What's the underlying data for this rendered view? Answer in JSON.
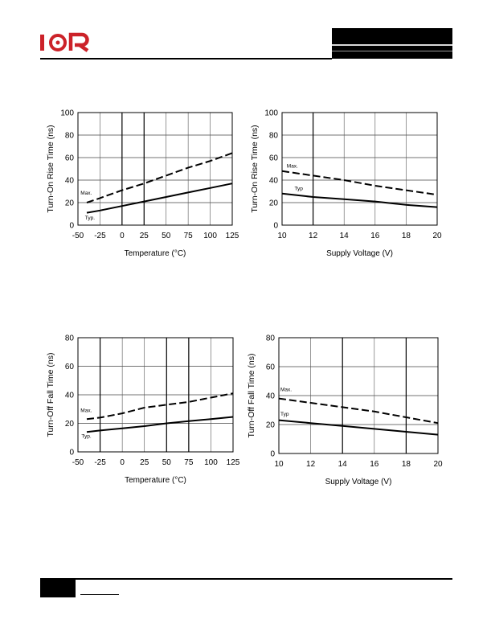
{
  "header": {
    "logo_text": "I⊙R",
    "brand_color": "#cc2229"
  },
  "chart_data": [
    {
      "type": "line",
      "title": "",
      "xlabel": "Temperature (°C)",
      "ylabel": "Turn-On Rise Time (ns)",
      "xlim": [
        -50,
        125
      ],
      "ylim": [
        0,
        100
      ],
      "xticks": [
        -50,
        -25,
        0,
        25,
        50,
        75,
        100,
        125
      ],
      "yticks": [
        0,
        20,
        40,
        60,
        80,
        100
      ],
      "xtick_labels": [
        "-50",
        "-25",
        "0",
        "25",
        "50",
        "75",
        "100",
        "125"
      ],
      "ytick_labels": [
        "0",
        "20",
        "40",
        "60",
        "80",
        "100"
      ],
      "grid": true,
      "series": [
        {
          "name": "Max.",
          "style": "dashed",
          "x": [
            -40,
            -25,
            0,
            25,
            50,
            75,
            100,
            125
          ],
          "values": [
            20,
            24,
            31,
            37,
            44,
            51,
            57,
            64
          ]
        },
        {
          "name": "Typ.",
          "style": "solid",
          "x": [
            -40,
            -25,
            0,
            25,
            50,
            75,
            100,
            125
          ],
          "values": [
            11,
            13,
            17,
            21,
            25,
            29,
            33,
            37
          ]
        }
      ]
    },
    {
      "type": "line",
      "title": "",
      "xlabel": "Supply Voltage (V)",
      "ylabel": "Turn-On Rise Time (ns)",
      "xlim": [
        10,
        20
      ],
      "ylim": [
        0,
        100
      ],
      "xticks": [
        10,
        12,
        14,
        16,
        18,
        20
      ],
      "yticks": [
        0,
        20,
        40,
        60,
        80,
        100
      ],
      "xtick_labels": [
        "10",
        "12",
        "14",
        "16",
        "18",
        "20"
      ],
      "ytick_labels": [
        "0",
        "20",
        "40",
        "60",
        "80",
        "100"
      ],
      "grid": true,
      "series": [
        {
          "name": "Max.",
          "style": "dashed",
          "x": [
            10,
            12,
            14,
            16,
            18,
            20
          ],
          "values": [
            48,
            44,
            40,
            35,
            31,
            27
          ]
        },
        {
          "name": "Typ",
          "style": "solid",
          "x": [
            10,
            12,
            14,
            16,
            18,
            20
          ],
          "values": [
            28,
            25,
            23,
            21,
            18,
            16
          ]
        }
      ]
    },
    {
      "type": "line",
      "title": "",
      "xlabel": "Temperature (°C)",
      "ylabel": "Turn-Off Fall Time (ns)",
      "xlim": [
        -50,
        125
      ],
      "ylim": [
        0,
        80
      ],
      "xticks": [
        -50,
        -25,
        0,
        25,
        50,
        75,
        100,
        125
      ],
      "yticks": [
        0,
        20,
        40,
        60,
        80
      ],
      "xtick_labels": [
        "-50",
        "-25",
        "0",
        "25",
        "50",
        "75",
        "100",
        "125"
      ],
      "ytick_labels": [
        "0",
        "20",
        "40",
        "60",
        "80"
      ],
      "grid": true,
      "series": [
        {
          "name": "Max.",
          "style": "dashed",
          "x": [
            -40,
            -25,
            0,
            25,
            50,
            75,
            100,
            125
          ],
          "values": [
            23,
            24,
            27,
            31,
            33,
            35,
            38,
            41
          ]
        },
        {
          "name": "Typ.",
          "style": "solid",
          "x": [
            -40,
            -25,
            0,
            25,
            50,
            75,
            100,
            125
          ],
          "values": [
            14,
            15,
            16.5,
            18,
            20,
            21.5,
            23,
            24.5
          ]
        }
      ]
    },
    {
      "type": "line",
      "title": "",
      "xlabel": "Supply Voltage (V)",
      "ylabel": "Turn-Off Fall Time (ns)",
      "xlim": [
        10,
        20
      ],
      "ylim": [
        0,
        80
      ],
      "xticks": [
        10,
        12,
        14,
        16,
        18,
        20
      ],
      "yticks": [
        0,
        20,
        40,
        60,
        80
      ],
      "xtick_labels": [
        "10",
        "12",
        "14",
        "16",
        "18",
        "20"
      ],
      "ytick_labels": [
        "0",
        "20",
        "40",
        "60",
        "80"
      ],
      "grid": true,
      "series": [
        {
          "name": "Max.",
          "style": "dashed",
          "x": [
            10,
            12,
            14,
            16,
            18,
            20
          ],
          "values": [
            38,
            35,
            32,
            29,
            25,
            21
          ]
        },
        {
          "name": "Typ",
          "style": "solid",
          "x": [
            10,
            12,
            14,
            16,
            18,
            20
          ],
          "values": [
            23,
            21,
            19,
            17,
            15,
            13
          ]
        }
      ]
    }
  ]
}
